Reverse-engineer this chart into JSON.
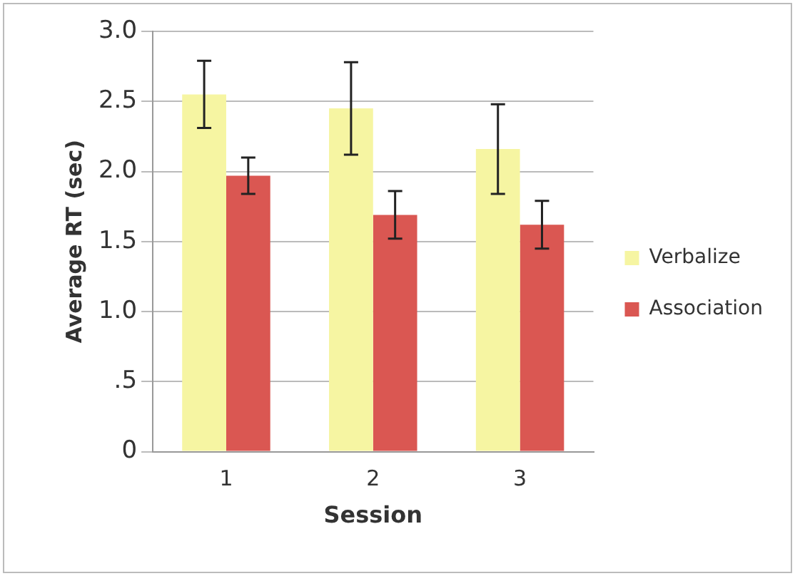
{
  "chart_data": {
    "type": "bar",
    "xlabel": "Session",
    "ylabel": "Average RT (sec)",
    "categories": [
      "1",
      "2",
      "3"
    ],
    "series": [
      {
        "name": "Verbalize",
        "color": "#f6f5a2",
        "values": [
          2.55,
          2.45,
          2.16
        ],
        "errors": [
          0.24,
          0.33,
          0.32
        ]
      },
      {
        "name": "Association",
        "color": "#da5752",
        "values": [
          1.97,
          1.69,
          1.62
        ],
        "errors": [
          0.13,
          0.17,
          0.17
        ]
      }
    ],
    "ylim": [
      0,
      3
    ],
    "yticks": [
      {
        "value": 0,
        "label": "0"
      },
      {
        "value": 0.5,
        "label": ".5"
      },
      {
        "value": 1,
        "label": "1.0"
      },
      {
        "value": 1.5,
        "label": "1.5"
      },
      {
        "value": 2,
        "label": "2.0"
      },
      {
        "value": 2.5,
        "label": "2.5"
      },
      {
        "value": 3,
        "label": "3.0"
      }
    ],
    "grid": "y",
    "legend": "right"
  }
}
